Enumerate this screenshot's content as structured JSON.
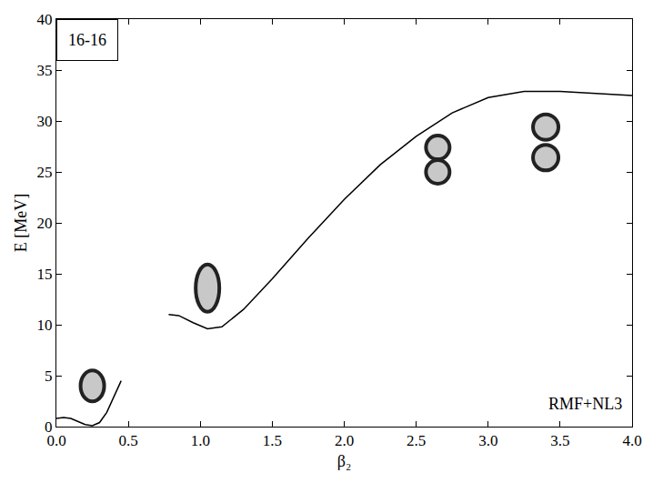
{
  "chart_data": {
    "type": "line",
    "x_label": "β₂",
    "y_label": "E [MeV]",
    "annotations": [
      "16-16",
      "RMF+NL3"
    ],
    "color": "#000000",
    "grid": false,
    "x": [
      0.0,
      0.05,
      0.1,
      0.15,
      0.2,
      0.25,
      0.3,
      0.35,
      0.4,
      0.45,
      0.6,
      0.78,
      0.85,
      0.95,
      1.05,
      1.15,
      1.3,
      1.5,
      1.75,
      2.0,
      2.25,
      2.5,
      2.75,
      3.0,
      3.25,
      3.5,
      3.75,
      4.0
    ],
    "values": [
      0.8,
      0.9,
      0.8,
      0.5,
      0.2,
      0.1,
      0.4,
      1.4,
      2.9,
      4.5,
      null,
      11.0,
      10.9,
      10.2,
      9.6,
      9.8,
      11.5,
      14.5,
      18.5,
      22.3,
      25.7,
      28.5,
      30.8,
      32.3,
      32.9,
      32.9,
      32.7,
      32.5
    ],
    "xlim": [
      0,
      4
    ],
    "ylim": [
      0,
      40
    ],
    "xticks": [
      {
        "value": 0,
        "label": "0.0"
      },
      {
        "value": 0.5,
        "label": "0.5"
      },
      {
        "value": 1,
        "label": "1.0"
      },
      {
        "value": 1.5,
        "label": "1.5"
      },
      {
        "value": 2,
        "label": "2.0"
      },
      {
        "value": 2.5,
        "label": "2.5"
      },
      {
        "value": 3,
        "label": "3.0"
      },
      {
        "value": 3.5,
        "label": "3.5"
      },
      {
        "value": 4,
        "label": "4.0"
      }
    ],
    "yticks": [
      0,
      5,
      10,
      15,
      20,
      25,
      30,
      35,
      40
    ]
  }
}
